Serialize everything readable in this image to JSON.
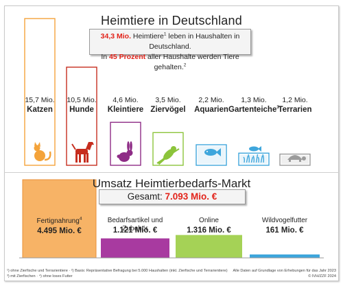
{
  "title": "Heimtiere in Deutschland",
  "callout": {
    "line1_prefix": "34,3 Mio.",
    "line1_rest": " Heimtiere",
    "line1_sup": "1",
    "line1_end": " leben in Haushalten in Deutschland.",
    "line2_start": "In ",
    "line2_red": "45 Prozent",
    "line2_rest": " aller Haushalte werden Tiere gehalten.",
    "line2_sup": "2"
  },
  "colors": {
    "cat": "#f4a33a",
    "dog": "#c62d1e",
    "small": "#8e2c86",
    "bird": "#8cc43b",
    "fish": "#3ea6dc",
    "pond": "#3ea6dc",
    "turtle": "#9b9b9b",
    "red": "#e2231a"
  },
  "market": {
    "title": "Umsatz Heimtierbedarfs-Markt",
    "total_label": "Gesamt: ",
    "total_value": "7.093 Mio. €"
  },
  "footnotes": {
    "left1": "¹) ohne Zierfische und Terrarientiere · ²) Basis: Repräsentative Befragung bei 5.000 Haushalten (inkl. Zierfische und Terrarientiere)",
    "left2": "³) mit Zierfischen · ⁴) ohne loses Futter",
    "right1": "Alle Daten auf Grundlage von Erhebungen für das Jahr 2023",
    "right2": "© IVH/ZZF 2024"
  },
  "chart_data": [
    {
      "type": "bar",
      "title": "Heimtiere in Deutschland",
      "unit": "Mio.",
      "categories": [
        "Katzen",
        "Hunde",
        "Kleintiere",
        "Ziervögel",
        "Aquarien",
        "Gartenteiche",
        "Terrarien"
      ],
      "values": [
        15.7,
        10.5,
        4.6,
        3.5,
        2.2,
        1.3,
        1.2
      ],
      "value_labels": [
        "15,7 Mio.",
        "10,5 Mio.",
        "4,6 Mio.",
        "3,5 Mio.",
        "2,2 Mio.",
        "1,3 Mio.",
        "1,2 Mio."
      ],
      "name_sups": [
        "",
        "",
        "",
        "",
        "",
        "3",
        ""
      ],
      "icons": [
        "cat-icon",
        "dog-icon",
        "rabbit-icon",
        "parrot-icon",
        "fish-icon",
        "pond-fish-icon",
        "turtle-icon"
      ],
      "colors": [
        "#f4a33a",
        "#c62d1e",
        "#8e2c86",
        "#8cc43b",
        "#3ea6dc",
        "#3ea6dc",
        "#9b9b9b"
      ]
    },
    {
      "type": "bar",
      "title": "Umsatz Heimtierbedarfs-Markt",
      "unit": "Mio. €",
      "categories": [
        "Fertignahrung",
        "Bedarfsartikel und Zubehör",
        "Online",
        "Wildvogelfutter"
      ],
      "name_sups": [
        "4",
        "",
        "",
        ""
      ],
      "values": [
        4495,
        1121,
        1316,
        161
      ],
      "value_labels": [
        "4.495 Mio. €",
        "1.121 Mio. €",
        "1.316 Mio. €",
        "161 Mio. €"
      ],
      "colors": [
        "#f7b366",
        "#a83aa0",
        "#a5d256",
        "#3ea6dc"
      ]
    }
  ]
}
